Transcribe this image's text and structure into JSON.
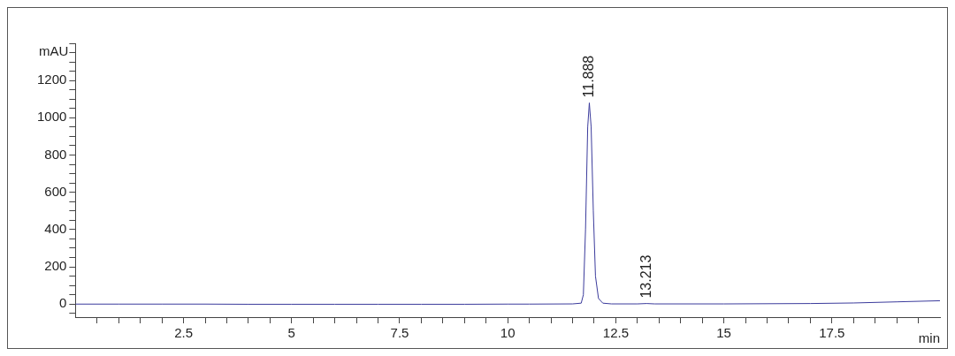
{
  "chart_data": {
    "type": "line",
    "xlabel": "min",
    "ylabel": "mAU",
    "x": [
      0,
      1,
      2,
      3,
      4,
      5,
      6,
      7,
      8,
      9,
      10,
      10.5,
      11.5,
      11.7,
      11.75,
      11.8,
      11.85,
      11.888,
      11.93,
      11.98,
      12.03,
      12.1,
      12.2,
      12.4,
      13.0,
      13.213,
      13.4,
      15,
      17,
      18,
      19,
      20
    ],
    "series": [
      {
        "color": "#3b3b9c",
        "values": [
          0,
          0,
          0,
          0,
          -1,
          -1,
          -1,
          -1,
          -1,
          -1,
          0,
          0,
          1,
          5,
          50,
          400,
          950,
          1080,
          950,
          500,
          150,
          30,
          5,
          1,
          1,
          3,
          1,
          1,
          3,
          6,
          12,
          18
        ]
      }
    ],
    "xlim": [
      0,
      20
    ],
    "ylim": [
      -70,
      1400
    ],
    "xticks": [
      {
        "value": 0.5,
        "label": null
      },
      {
        "value": 1,
        "label": null
      },
      {
        "value": 1.5,
        "label": null
      },
      {
        "value": 2,
        "label": null
      },
      2.5,
      {
        "value": 3,
        "label": null
      },
      {
        "value": 3.5,
        "label": null
      },
      {
        "value": 4,
        "label": null
      },
      {
        "value": 4.5,
        "label": null
      },
      5,
      {
        "value": 5.5,
        "label": null
      },
      {
        "value": 6,
        "label": null
      },
      {
        "value": 6.5,
        "label": null
      },
      {
        "value": 7,
        "label": null
      },
      7.5,
      {
        "value": 8,
        "label": null
      },
      {
        "value": 8.5,
        "label": null
      },
      {
        "value": 9,
        "label": null
      },
      {
        "value": 9.5,
        "label": null
      },
      10,
      {
        "value": 10.5,
        "label": null
      },
      {
        "value": 11,
        "label": null
      },
      {
        "value": 11.5,
        "label": null
      },
      {
        "value": 12,
        "label": null
      },
      12.5,
      {
        "value": 13,
        "label": null
      },
      {
        "value": 13.5,
        "label": null
      },
      {
        "value": 14,
        "label": null
      },
      {
        "value": 14.5,
        "label": null
      },
      15,
      {
        "value": 15.5,
        "label": null
      },
      {
        "value": 16,
        "label": null
      },
      {
        "value": 16.5,
        "label": null
      },
      {
        "value": 17,
        "label": null
      },
      17.5,
      {
        "value": 18,
        "label": null
      },
      {
        "value": 18.5,
        "label": null
      },
      {
        "value": 19,
        "label": null
      },
      {
        "value": 19.5,
        "label": null
      }
    ],
    "yticks": [
      {
        "value": -50,
        "label": null
      },
      0,
      {
        "value": 50,
        "label": null
      },
      {
        "value": 100,
        "label": null
      },
      {
        "value": 150,
        "label": null
      },
      200,
      {
        "value": 250,
        "label": null
      },
      {
        "value": 300,
        "label": null
      },
      {
        "value": 350,
        "label": null
      },
      400,
      {
        "value": 450,
        "label": null
      },
      {
        "value": 500,
        "label": null
      },
      {
        "value": 550,
        "label": null
      },
      600,
      {
        "value": 650,
        "label": null
      },
      {
        "value": 700,
        "label": null
      },
      {
        "value": 750,
        "label": null
      },
      800,
      {
        "value": 850,
        "label": null
      },
      {
        "value": 900,
        "label": null
      },
      {
        "value": 950,
        "label": null
      },
      1000,
      {
        "value": 1050,
        "label": null
      },
      {
        "value": 1100,
        "label": null
      },
      {
        "value": 1150,
        "label": null
      },
      1200,
      {
        "value": 1250,
        "label": null
      },
      {
        "value": 1300,
        "label": null
      },
      {
        "value": 1350,
        "label": null
      },
      {
        "value": 1400,
        "label": null
      }
    ],
    "annotations": [
      {
        "text": "11.888",
        "x": 11.888,
        "y": 1080
      },
      {
        "text": "13.213",
        "x": 13.213,
        "y": 3
      }
    ],
    "grid": false,
    "legend": false,
    "marker": "none",
    "line_style": "solid"
  }
}
